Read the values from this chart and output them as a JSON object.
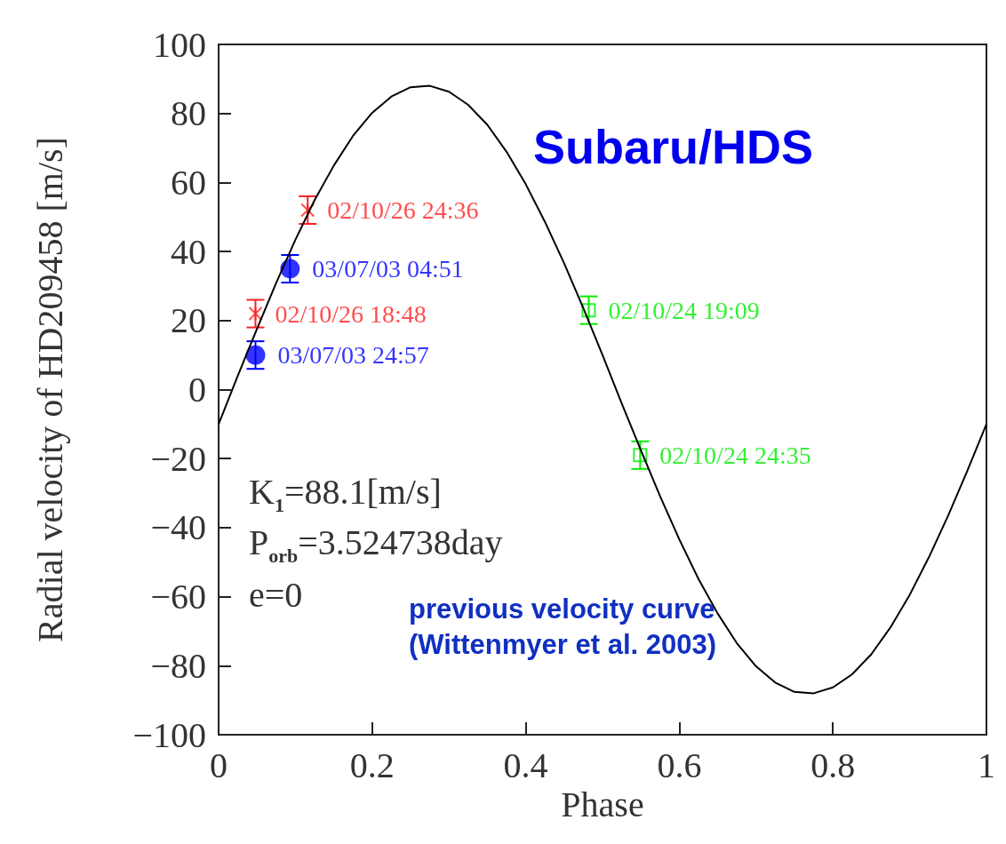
{
  "chart_data": {
    "type": "scatter",
    "xlabel": "Phase",
    "ylabel": "Radial velocity of HD209458 [m/s]",
    "xlim": [
      0,
      1
    ],
    "xticks": [
      0,
      0.2,
      0.4,
      0.6,
      0.8,
      1
    ],
    "ylim": [
      -100,
      100
    ],
    "yticks": [
      -100,
      -80,
      -60,
      -40,
      -20,
      0,
      20,
      40,
      60,
      80,
      100
    ],
    "grid": false,
    "series": [
      {
        "type": "line",
        "color": "#000000",
        "marker": "none",
        "x": [
          0,
          0.025,
          0.05,
          0.075,
          0.1,
          0.125,
          0.15,
          0.175,
          0.2,
          0.225,
          0.25,
          0.275,
          0.3,
          0.325,
          0.35,
          0.375,
          0.4,
          0.425,
          0.45,
          0.475,
          0.5,
          0.525,
          0.55,
          0.575,
          0.6,
          0.625,
          0.65,
          0.675,
          0.7,
          0.725,
          0.75,
          0.775,
          0.8,
          0.825,
          0.85,
          0.875,
          0.9,
          0.925,
          0.95,
          0.975,
          1
        ],
        "values": [
          -10,
          4,
          17.6,
          30.9,
          43.4,
          54.9,
          64.9,
          73.5,
          80.2,
          84.9,
          87.6,
          88,
          86.3,
          82.5,
          76.7,
          68.9,
          59.5,
          48.6,
          36.6,
          23.6,
          10,
          -4,
          -17.6,
          -30.9,
          -43.4,
          -54.9,
          -64.9,
          -73.5,
          -80.2,
          -84.9,
          -87.6,
          -88,
          -86.3,
          -82.5,
          -76.7,
          -68.9,
          -59.5,
          -48.6,
          -36.6,
          -23.6,
          -10
        ]
      },
      {
        "color": "#ff2020",
        "marker": "cross",
        "x": [
          0.116,
          0.048
        ],
        "values": [
          52,
          22
        ],
        "errors": [
          4,
          4
        ],
        "value_labels": [
          "02/10/26 24:36",
          "02/10/26 18:48"
        ]
      },
      {
        "color": "#0000ff",
        "marker": "circle",
        "x": [
          0.093,
          0.048
        ],
        "values": [
          35,
          10
        ],
        "errors": [
          4,
          4
        ],
        "value_labels": [
          "03/07/03 04:51",
          "03/07/03 24:57"
        ]
      },
      {
        "color": "#00ee00",
        "marker": "square",
        "x": [
          0.482,
          0.549
        ],
        "values": [
          23,
          -19
        ],
        "errors": [
          4,
          4
        ],
        "value_labels": [
          "02/10/24 19:09",
          "02/10/24 24:35"
        ]
      }
    ],
    "annotations": [
      "Subaru/HDS",
      "K$_{1}$=88.1[m/s]",
      "P$_{orb}$=3.524738day",
      "e=0",
      "previous velocity curve\n(Wittenmyer et al. 2003)"
    ]
  }
}
